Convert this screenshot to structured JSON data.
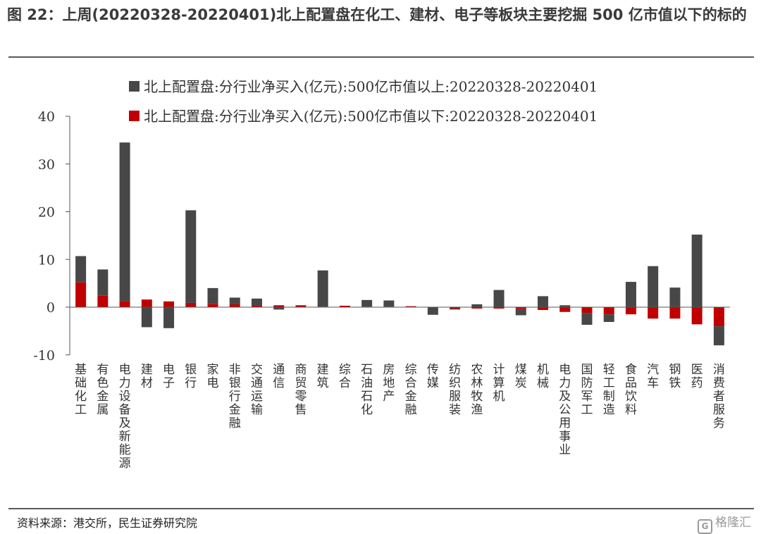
{
  "figure": {
    "title": "图 22：上周(20220328-20220401)北上配置盘在化工、建材、电子等板块主要挖掘 500 亿市值以下的标的",
    "source": "资料来源：港交所，民生证券研究院",
    "watermark": "格隆汇",
    "watermark_icon": "G"
  },
  "chart_data": {
    "type": "bar",
    "stacked": true,
    "ylim": [
      -10,
      40
    ],
    "yticks": [
      40,
      30,
      20,
      10,
      0,
      -10
    ],
    "grid": false,
    "legend_position": "top",
    "categories": [
      "基础化工",
      "有色金属",
      "电力设备及新能源",
      "建材",
      "电子",
      "银行",
      "家电",
      "非银行金融",
      "交通运输",
      "通信",
      "商贸零售",
      "建筑",
      "综合",
      "石油石化",
      "房地产",
      "综合金融",
      "传媒",
      "纺织服装",
      "农林牧渔",
      "计算机",
      "煤炭",
      "机械",
      "电力及公用事业",
      "国防军工",
      "轻工制造",
      "食品饮料",
      "汽车",
      "钢铁",
      "医药",
      "消费者服务"
    ],
    "series": [
      {
        "name": "北上配置盘:分行业净买入(亿元):500亿市值以上:20220328-20220401",
        "color": "#474747",
        "values": [
          5.5,
          5.5,
          33.2,
          -4.2,
          -4.4,
          19.4,
          3.3,
          1.4,
          1.5,
          -0.5,
          0.0,
          7.6,
          0.0,
          1.4,
          1.3,
          0.0,
          -1.6,
          -0.2,
          0.6,
          3.6,
          -1.3,
          2.3,
          0.4,
          -2.5,
          -1.6,
          5.3,
          8.6,
          4.1,
          15.2,
          -4.0
        ]
      },
      {
        "name": "北上配置盘:分行业净买入(亿元):500亿市值以下:20220328-20220401",
        "color": "#c00000",
        "values": [
          5.2,
          2.4,
          1.3,
          1.6,
          1.2,
          0.9,
          0.7,
          0.6,
          0.3,
          0.4,
          0.4,
          0.1,
          0.3,
          0.1,
          0.1,
          0.2,
          0.0,
          -0.3,
          -0.3,
          -0.3,
          -0.4,
          -0.6,
          -1.0,
          -1.2,
          -1.5,
          -1.5,
          -2.4,
          -2.4,
          -3.6,
          -4.0
        ]
      }
    ]
  }
}
